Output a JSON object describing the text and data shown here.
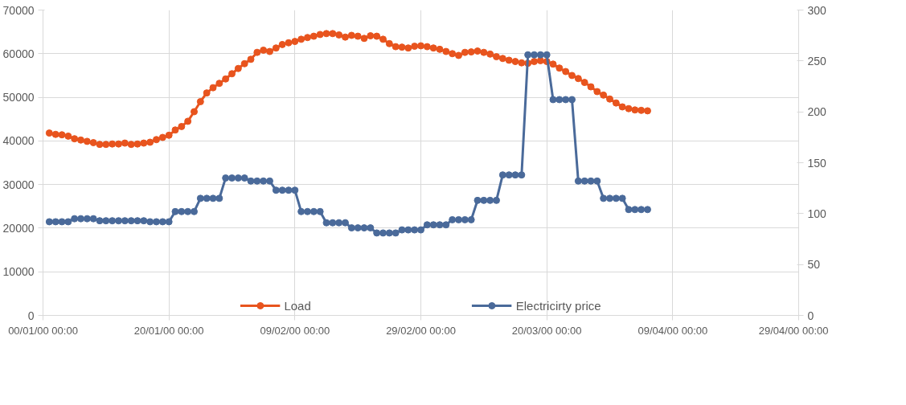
{
  "chart_data": {
    "type": "line",
    "marker": "circle",
    "line_style": "solid",
    "grid": true,
    "legend": "bottom",
    "x": [
      "2000-01-01",
      "2000-01-02",
      "2000-01-03",
      "2000-01-04",
      "2000-01-05",
      "2000-01-06",
      "2000-01-07",
      "2000-01-08",
      "2000-01-09",
      "2000-01-10",
      "2000-01-11",
      "2000-01-12",
      "2000-01-13",
      "2000-01-14",
      "2000-01-15",
      "2000-01-16",
      "2000-01-17",
      "2000-01-18",
      "2000-01-19",
      "2000-01-20",
      "2000-01-21",
      "2000-01-22",
      "2000-01-23",
      "2000-01-24",
      "2000-01-25",
      "2000-01-26",
      "2000-01-27",
      "2000-01-28",
      "2000-01-29",
      "2000-01-30",
      "2000-01-31",
      "2000-02-01",
      "2000-02-02",
      "2000-02-03",
      "2000-02-04",
      "2000-02-05",
      "2000-02-06",
      "2000-02-07",
      "2000-02-08",
      "2000-02-09",
      "2000-02-10",
      "2000-02-11",
      "2000-02-12",
      "2000-02-13",
      "2000-02-14",
      "2000-02-15",
      "2000-02-16",
      "2000-02-17",
      "2000-02-18",
      "2000-02-19",
      "2000-02-20",
      "2000-02-21",
      "2000-02-22",
      "2000-02-23",
      "2000-02-24",
      "2000-02-25",
      "2000-02-26",
      "2000-02-27",
      "2000-02-28",
      "2000-02-29",
      "2000-03-01",
      "2000-03-02",
      "2000-03-03",
      "2000-03-04",
      "2000-03-05",
      "2000-03-06",
      "2000-03-07",
      "2000-03-08",
      "2000-03-09",
      "2000-03-10",
      "2000-03-11",
      "2000-03-12",
      "2000-03-13",
      "2000-03-14",
      "2000-03-15",
      "2000-03-16",
      "2000-03-17",
      "2000-03-18",
      "2000-03-19",
      "2000-03-20",
      "2000-03-21",
      "2000-03-22",
      "2000-03-23",
      "2000-03-24",
      "2000-03-25",
      "2000-03-26",
      "2000-03-27",
      "2000-03-28",
      "2000-03-29",
      "2000-03-30",
      "2000-03-31",
      "2000-04-01",
      "2000-04-02",
      "2000-04-03",
      "2000-04-04",
      "2000-04-05"
    ],
    "xlim": [
      "1999-12-31",
      "2000-04-29"
    ],
    "xticks": [
      {
        "value": "1999-12-31",
        "label": "00/01/00 00:00"
      },
      {
        "value": "2000-01-20",
        "label": "20/01/00 00:00"
      },
      {
        "value": "2000-02-09",
        "label": "09/02/00 00:00"
      },
      {
        "value": "2000-02-29",
        "label": "29/02/00 00:00"
      },
      {
        "value": "2000-03-20",
        "label": "20/03/00 00:00"
      },
      {
        "value": "2000-04-09",
        "label": "09/04/00 00:00"
      },
      {
        "value": "2000-04-29",
        "label": "29/04/00 00:00"
      }
    ],
    "ylim": [
      0,
      70000
    ],
    "yticks": [
      0,
      10000,
      20000,
      30000,
      40000,
      50000,
      60000,
      70000
    ],
    "y2lim": [
      0,
      300
    ],
    "y2ticks": [
      0,
      50,
      100,
      150,
      200,
      250,
      300
    ],
    "series": [
      {
        "name": "Load",
        "color": "#e8541e",
        "values": [
          41800,
          41500,
          41400,
          41100,
          40500,
          40200,
          39900,
          39600,
          39200,
          39200,
          39300,
          39300,
          39500,
          39200,
          39300,
          39500,
          39700,
          40300,
          40800,
          41300,
          42500,
          43300,
          44500,
          46700,
          49000,
          51000,
          52200,
          53200,
          54200,
          55400,
          56600,
          57700,
          58700,
          60300,
          60800,
          60500,
          61300,
          62100,
          62500,
          62800,
          63300,
          63700,
          64000,
          64400,
          64600,
          64600,
          64300,
          63800,
          64200,
          64000,
          63500,
          64100,
          64000,
          63300,
          62300,
          61600,
          61500,
          61300,
          61700,
          61800,
          61600,
          61300,
          61000,
          60500,
          60000,
          59600,
          60300,
          60400,
          60600,
          60300,
          59900,
          59300,
          58900,
          58500,
          58200,
          57900,
          57800,
          58200,
          58400,
          58200,
          57600,
          56700,
          55900,
          55000,
          54300,
          53400,
          52400,
          51300,
          50500,
          49600,
          48700,
          47800,
          47400,
          47100,
          47000,
          46900
        ]
      },
      {
        "name": "Electricirty price",
        "color": "#4a6a9a",
        "axis": "y2",
        "values": [
          92,
          92,
          92,
          92,
          95,
          95,
          95,
          95,
          93,
          93,
          93,
          93,
          93,
          93,
          93,
          93,
          92,
          92,
          92,
          92,
          102,
          102,
          102,
          102,
          115,
          115,
          115,
          115,
          135,
          135,
          135,
          135,
          132,
          132,
          132,
          132,
          123,
          123,
          123,
          123,
          102,
          102,
          102,
          102,
          91,
          91,
          91,
          91,
          86,
          86,
          86,
          86,
          81,
          81,
          81,
          81,
          84,
          84,
          84,
          84,
          89,
          89,
          89,
          89,
          94,
          94,
          94,
          94,
          113,
          113,
          113,
          113,
          138,
          138,
          138,
          138,
          256,
          256,
          256,
          256,
          212,
          212,
          212,
          212,
          132,
          132,
          132,
          132,
          115,
          115,
          115,
          115,
          104,
          104,
          104,
          104
        ]
      }
    ]
  }
}
